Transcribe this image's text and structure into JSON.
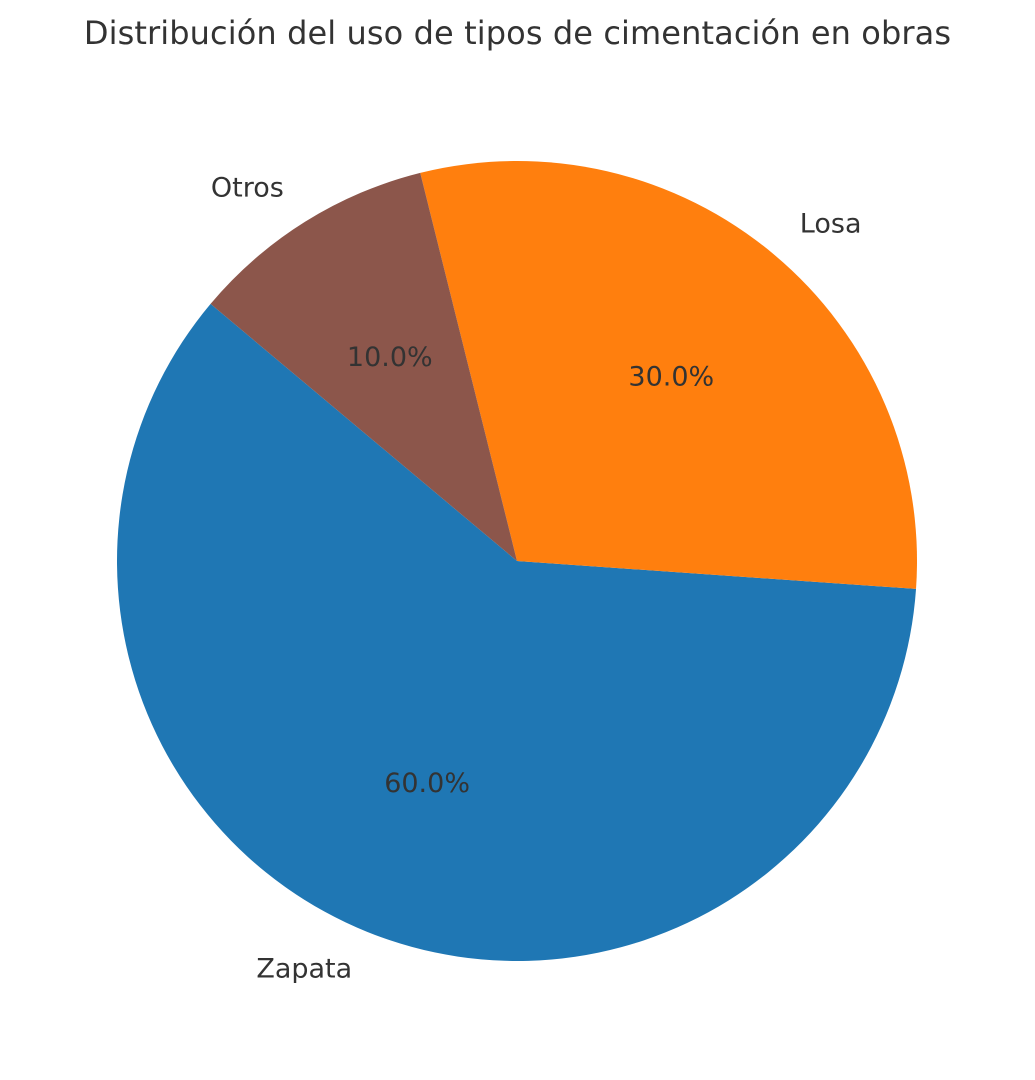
{
  "chart_data": {
    "type": "pie",
    "title": "Distribución del uso de tipos de cimentación en obras",
    "categories": [
      "Zapata",
      "Losa",
      "Otros"
    ],
    "values": [
      60.0,
      30.0,
      10.0
    ],
    "value_labels": [
      "60.0%",
      "30.0%",
      "10.0%"
    ],
    "colors": [
      "#1f77b4",
      "#ff7f0e",
      "#8c564b"
    ],
    "start_angle_deg": 140,
    "direction": "counterclockwise"
  }
}
